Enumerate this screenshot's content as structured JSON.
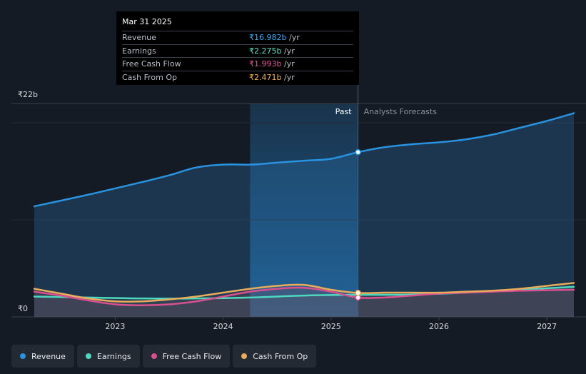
{
  "tooltip": {
    "date": "Mar 31 2025",
    "rows": [
      {
        "label": "Revenue",
        "value": "₹16.982b",
        "unit": "/yr",
        "color": "#3ea8f0"
      },
      {
        "label": "Earnings",
        "value": "₹2.275b",
        "unit": "/yr",
        "color": "#5de0c6"
      },
      {
        "label": "Free Cash Flow",
        "value": "₹1.993b",
        "unit": "/yr",
        "color": "#e0559a"
      },
      {
        "label": "Cash From Op",
        "value": "₹2.471b",
        "unit": "/yr",
        "color": "#f0b25a"
      }
    ]
  },
  "chart_data": {
    "type": "line",
    "ylim": [
      0,
      22
    ],
    "y_labels": [
      "₹22b",
      "₹0"
    ],
    "xlim": [
      2022.25,
      2027.25
    ],
    "x_ticks": [
      2023,
      2024,
      2025,
      2026,
      2027
    ],
    "x_tick_labels": [
      "2023",
      "2024",
      "2025",
      "2026",
      "2027"
    ],
    "past_label": "Past",
    "forecast_label": "Analysts Forecasts",
    "past_start": 2024.25,
    "divider": 2025.25,
    "series": [
      {
        "name": "Revenue",
        "color": "#2a93e0",
        "x": [
          2022.25,
          2022.75,
          2023.25,
          2023.5,
          2023.75,
          2024.0,
          2024.25,
          2024.5,
          2024.75,
          2025.0,
          2025.25,
          2025.5,
          2025.75,
          2026.0,
          2026.25,
          2026.5,
          2026.75,
          2027.0,
          2027.25
        ],
        "y": [
          11.4,
          12.6,
          13.9,
          14.6,
          15.4,
          15.7,
          15.7,
          15.9,
          16.1,
          16.3,
          16.982,
          17.5,
          17.8,
          18.0,
          18.3,
          18.8,
          19.5,
          20.2,
          21.0
        ]
      },
      {
        "name": "Earnings",
        "color": "#4fd8c0",
        "x": [
          2022.25,
          2022.75,
          2023.25,
          2023.75,
          2024.25,
          2024.75,
          2025.25,
          2025.75,
          2026.25,
          2026.75,
          2027.25
        ],
        "y": [
          2.1,
          2.0,
          1.9,
          1.9,
          2.0,
          2.2,
          2.275,
          2.3,
          2.5,
          2.8,
          3.1
        ]
      },
      {
        "name": "Free Cash Flow",
        "color": "#d9508f",
        "x": [
          2022.25,
          2022.5,
          2022.75,
          2023.0,
          2023.25,
          2023.5,
          2023.75,
          2024.0,
          2024.25,
          2024.5,
          2024.75,
          2025.0,
          2025.25,
          2025.5,
          2025.75,
          2026.0,
          2026.25,
          2026.5,
          2026.75,
          2027.0,
          2027.25
        ],
        "y": [
          2.6,
          2.2,
          1.7,
          1.3,
          1.2,
          1.3,
          1.6,
          2.1,
          2.6,
          2.9,
          3.0,
          2.6,
          1.993,
          2.0,
          2.2,
          2.4,
          2.5,
          2.6,
          2.7,
          2.75,
          2.8
        ]
      },
      {
        "name": "Cash From Op",
        "color": "#e8ac5c",
        "x": [
          2022.25,
          2022.5,
          2022.75,
          2023.0,
          2023.25,
          2023.5,
          2023.75,
          2024.0,
          2024.25,
          2024.5,
          2024.75,
          2025.0,
          2025.25,
          2025.5,
          2025.75,
          2026.0,
          2026.25,
          2026.5,
          2026.75,
          2027.0,
          2027.25
        ],
        "y": [
          2.9,
          2.4,
          1.9,
          1.6,
          1.6,
          1.8,
          2.1,
          2.5,
          2.9,
          3.2,
          3.3,
          2.8,
          2.471,
          2.5,
          2.5,
          2.5,
          2.6,
          2.7,
          2.9,
          3.2,
          3.5
        ]
      }
    ]
  },
  "legend": [
    {
      "label": "Revenue",
      "color": "#2a93e0"
    },
    {
      "label": "Earnings",
      "color": "#4fd8c0"
    },
    {
      "label": "Free Cash Flow",
      "color": "#d9508f"
    },
    {
      "label": "Cash From Op",
      "color": "#e8ac5c"
    }
  ]
}
